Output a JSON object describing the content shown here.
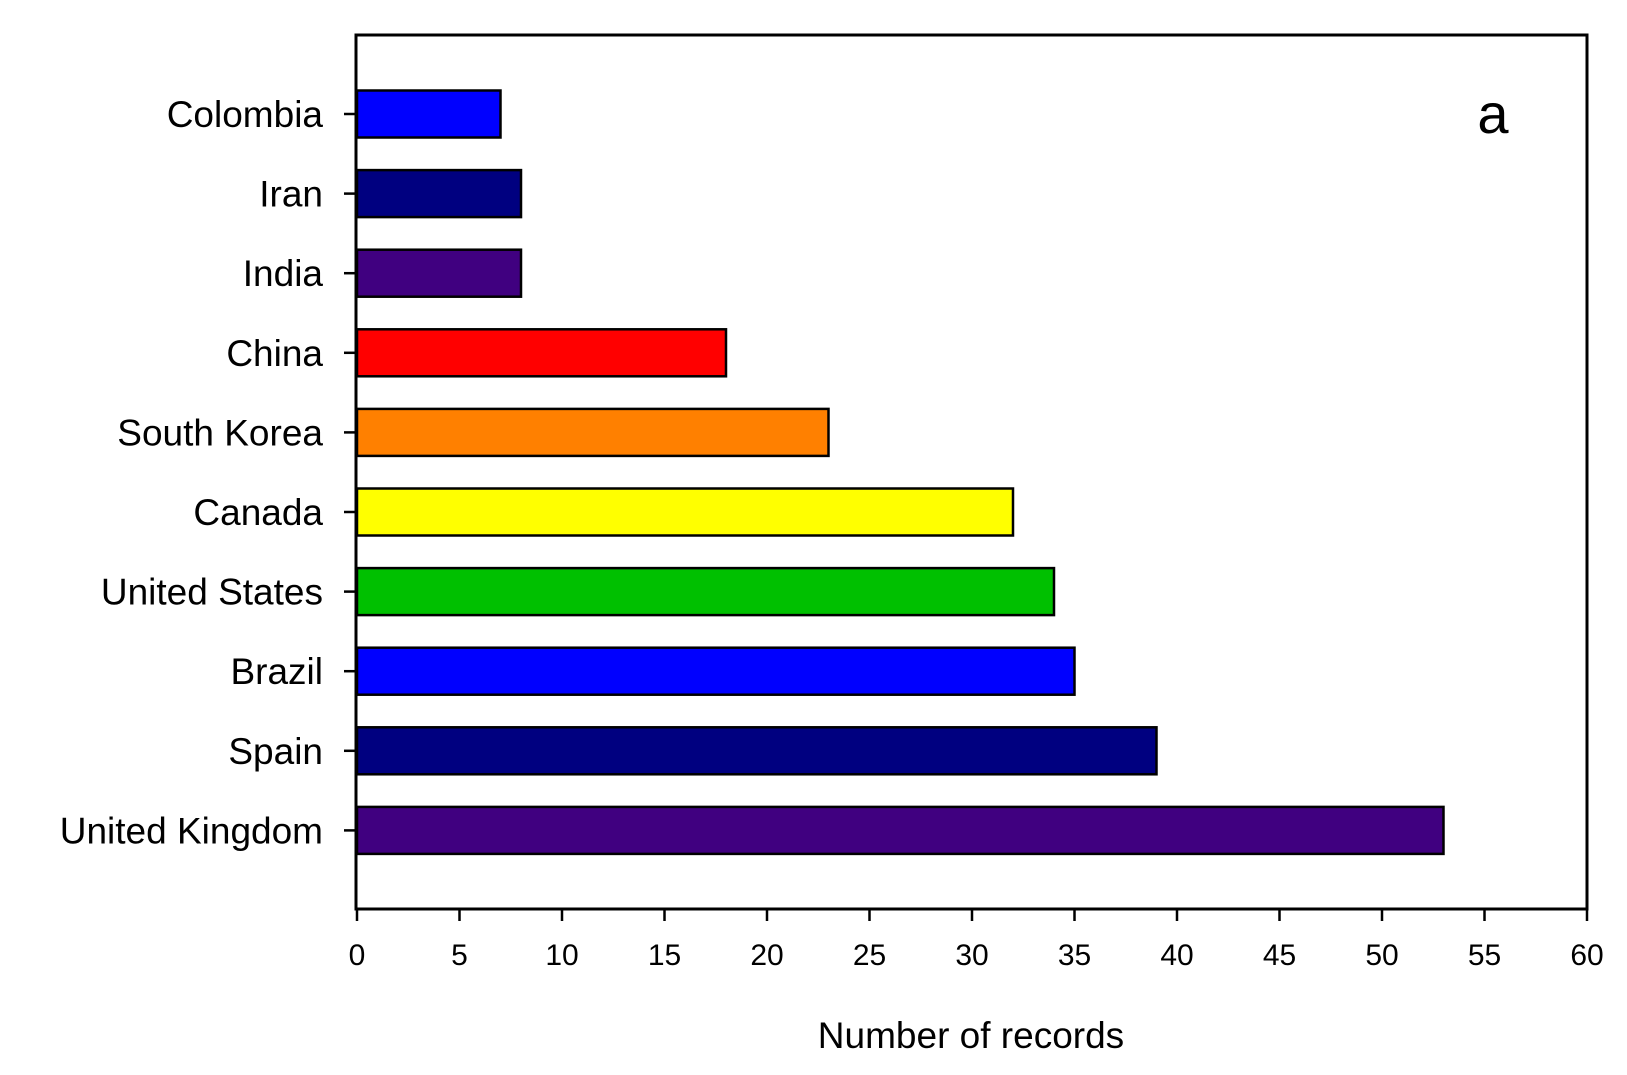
{
  "chart_data": {
    "type": "bar",
    "orientation": "horizontal",
    "panel_label": "a",
    "xlabel": "Number of records",
    "ylabel": "",
    "xlim": [
      0,
      60
    ],
    "x_ticks": [
      0,
      5,
      10,
      15,
      20,
      25,
      30,
      35,
      40,
      45,
      50,
      55,
      60
    ],
    "grid": false,
    "legend": "none",
    "categories": [
      "Colombia",
      "Iran",
      "India",
      "China",
      "South Korea",
      "Canada",
      "United States",
      "Brazil",
      "Spain",
      "United Kingdom"
    ],
    "values": [
      7,
      8,
      8,
      18,
      23,
      32,
      34,
      35,
      39,
      53
    ],
    "colors": [
      "#0000ff",
      "#000080",
      "#400080",
      "#ff0000",
      "#ff8000",
      "#ffff00",
      "#00c000",
      "#0000ff",
      "#000080",
      "#400080"
    ]
  }
}
